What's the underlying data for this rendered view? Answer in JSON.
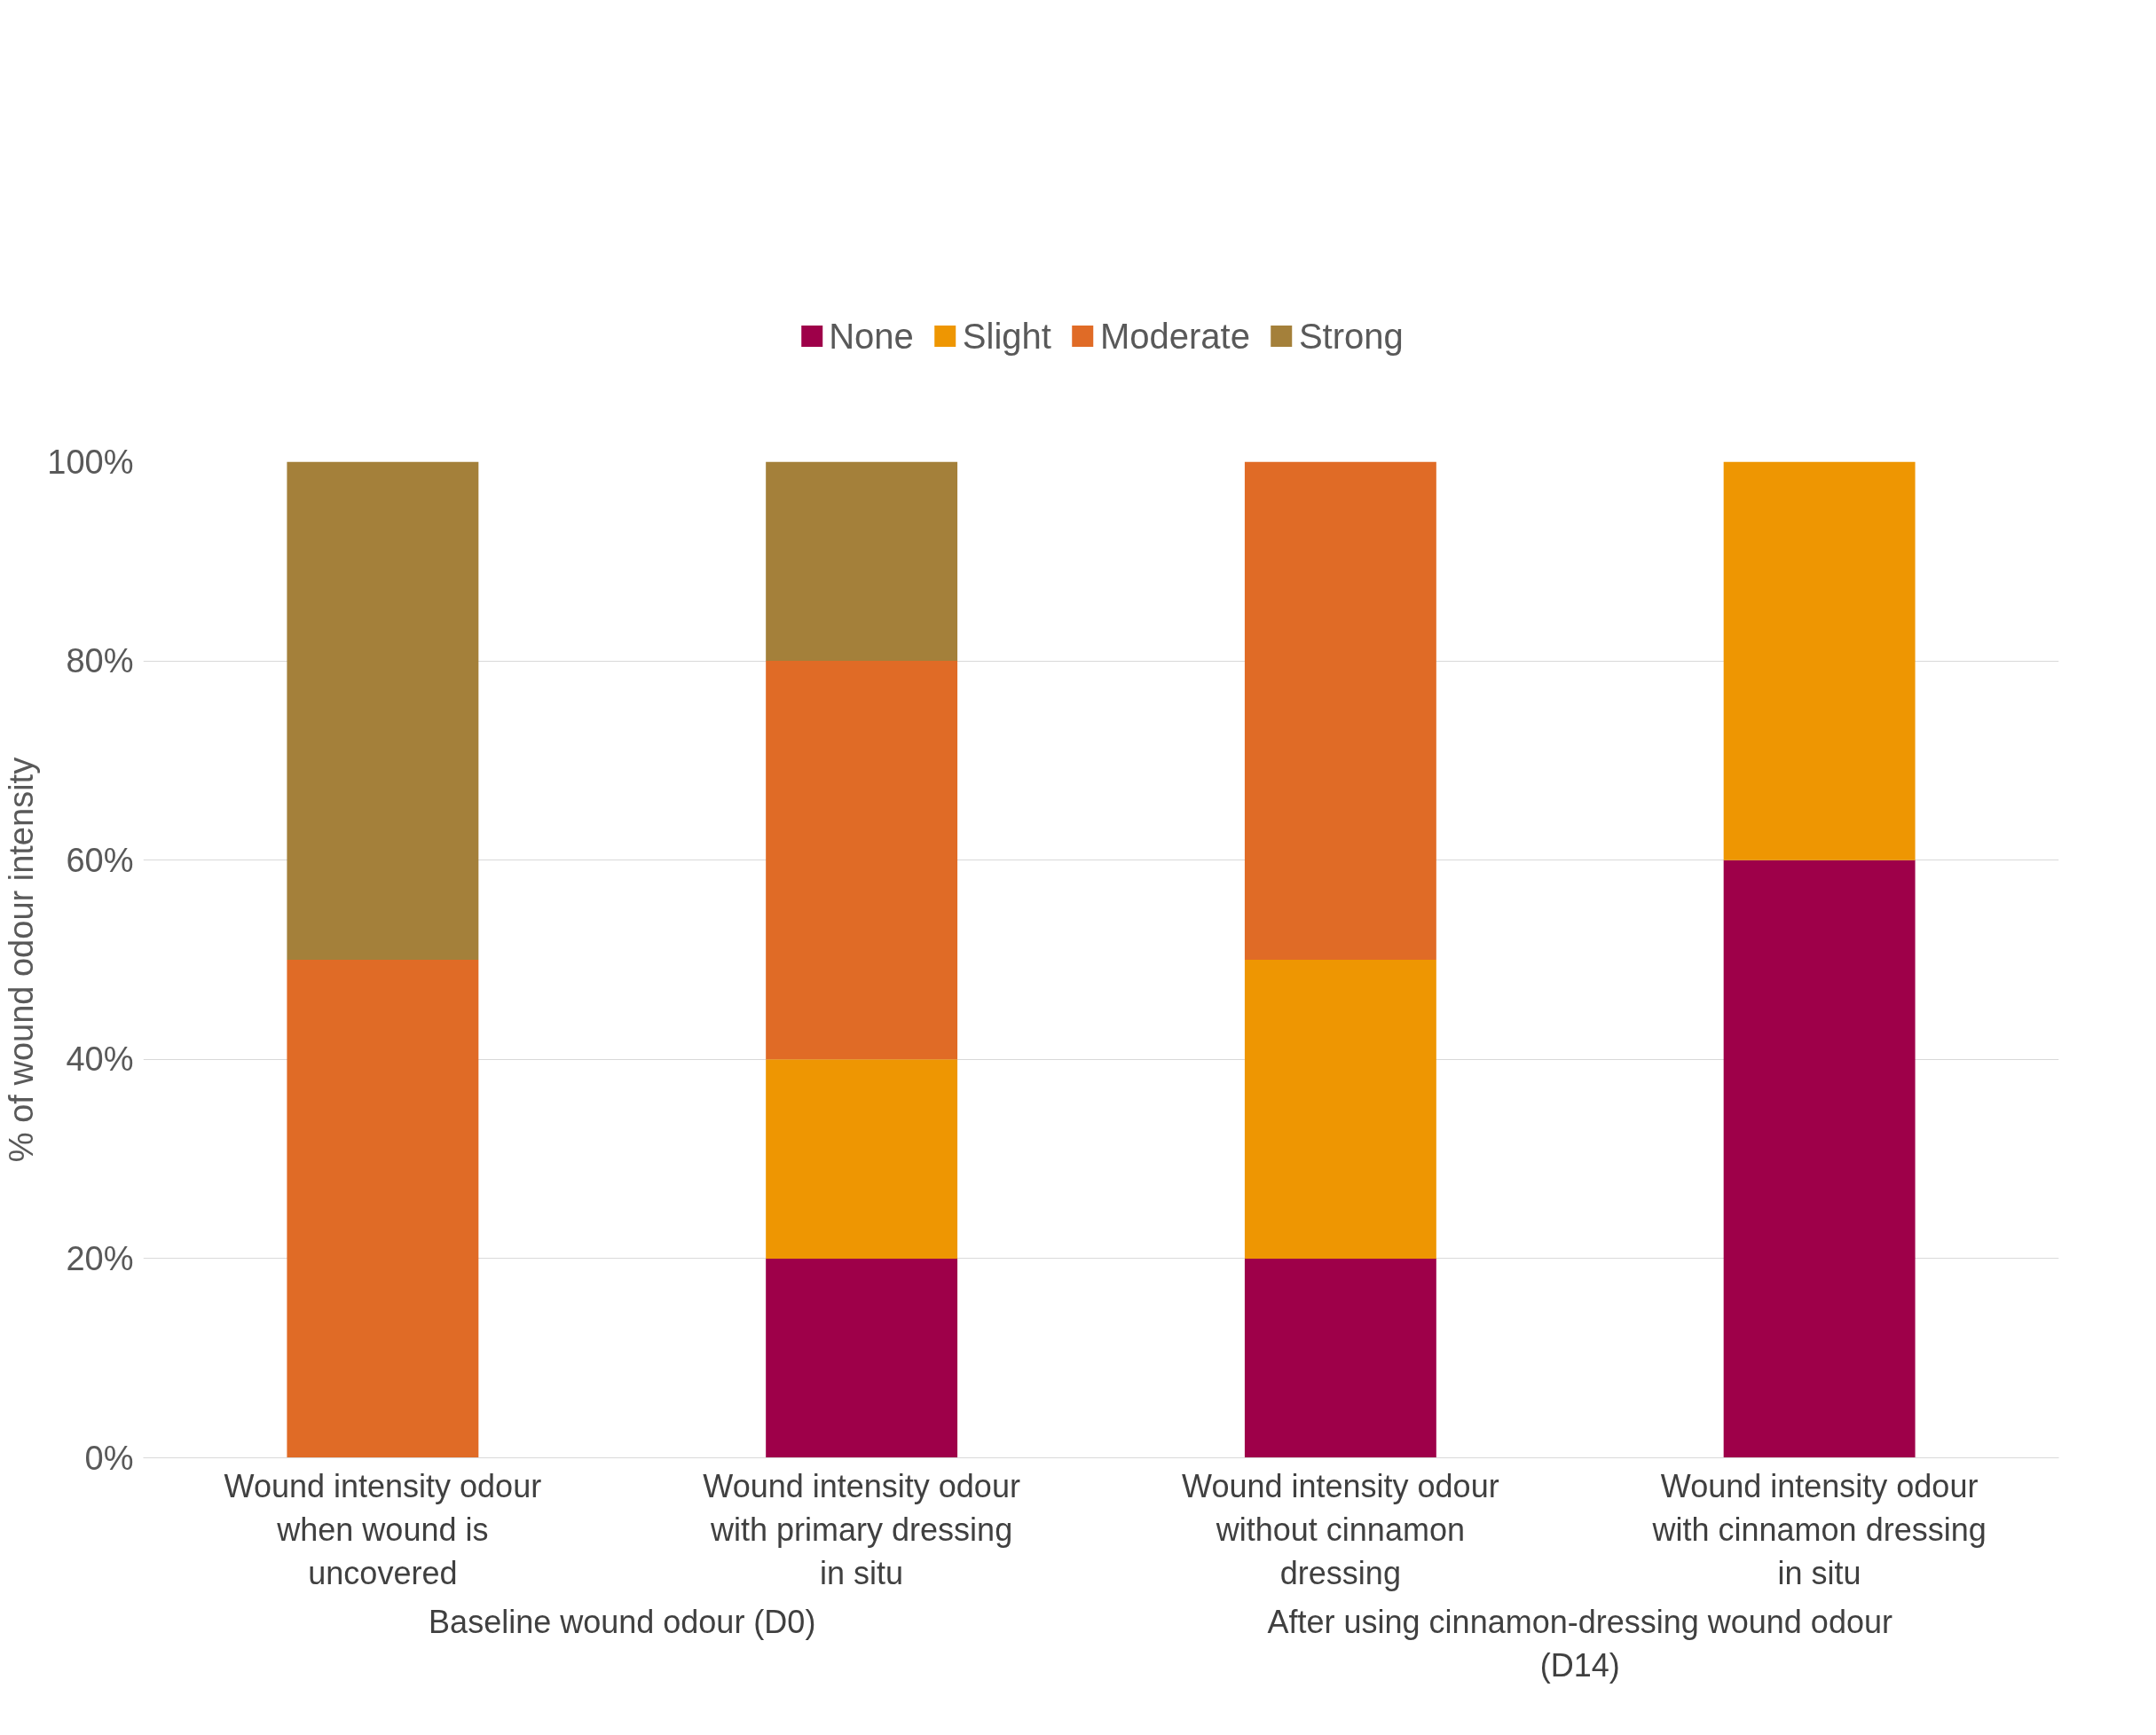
{
  "chart_data": {
    "type": "bar",
    "stacked": true,
    "ylabel": "% of wound odour intensity",
    "categories": [
      "Wound intensity odour when wound is uncovered",
      "Wound intensity odour with primary dressing in situ",
      "Wound intensity odour without cinnamon dressing",
      "Wound intensity odour with cinnamon dressing in situ"
    ],
    "series": [
      {
        "name": "None",
        "color": "#9e0049",
        "values": [
          0,
          20,
          20,
          60
        ]
      },
      {
        "name": "Slight",
        "color": "#ee9602",
        "values": [
          0,
          20,
          30,
          40
        ]
      },
      {
        "name": "Moderate",
        "color": "#e06b26",
        "values": [
          50,
          40,
          50,
          0
        ]
      },
      {
        "name": "Strong",
        "color": "#a4803a",
        "values": [
          50,
          20,
          0,
          0
        ]
      }
    ],
    "ylim": [
      0,
      100
    ],
    "yticks": [
      {
        "value": 0,
        "label": "0%"
      },
      {
        "value": 20,
        "label": "20%"
      },
      {
        "value": 40,
        "label": "40%"
      },
      {
        "value": 60,
        "label": "60%"
      },
      {
        "value": 80,
        "label": "80%"
      },
      {
        "value": 100,
        "label": "100%"
      }
    ],
    "annotations": [
      "Baseline wound odour (D0)",
      "After using cinnamon-dressing wound odour (D14)"
    ],
    "grid": "y",
    "legend": "top"
  }
}
